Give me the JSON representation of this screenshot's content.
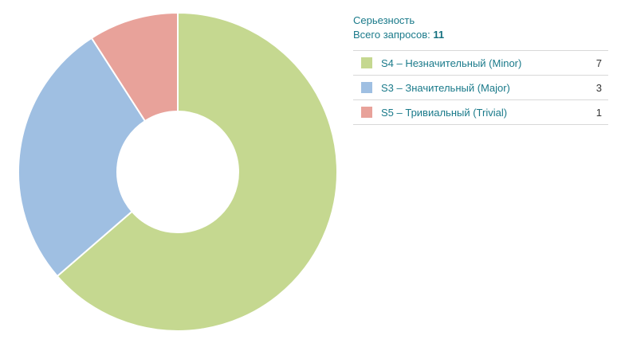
{
  "legend": {
    "title": "Серьезность",
    "total_label": "Всего запросов:",
    "total_value": "11"
  },
  "chart_data": {
    "type": "pie",
    "series": [
      {
        "name": "S4 – Незначительный (Minor)",
        "value": 7,
        "color": "#c5d890"
      },
      {
        "name": "S3 – Значительный (Major)",
        "value": 3,
        "color": "#9fbfe2"
      },
      {
        "name": "S5 – Тривиальный (Trivial)",
        "value": 1,
        "color": "#e8a29a"
      }
    ],
    "total": 11,
    "donut": true,
    "legend_position": "right"
  }
}
